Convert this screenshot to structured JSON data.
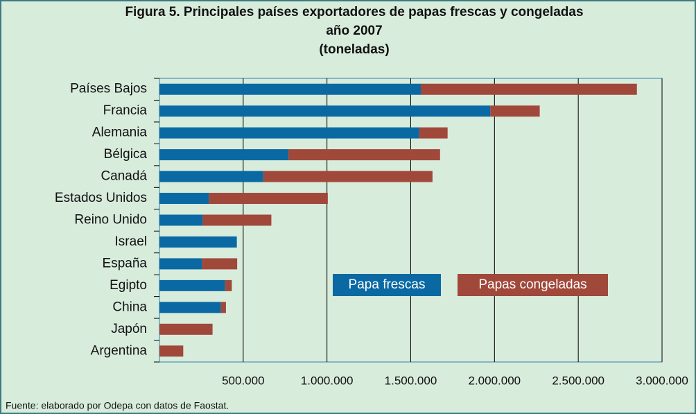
{
  "chart_data": {
    "type": "stacked-barh",
    "title_lines": [
      "Figura 5. Principales países exportadores de papas frescas y congeladas",
      "año 2007",
      "(toneladas)"
    ],
    "categories": [
      "Países Bajos",
      "Francia",
      "Alemania",
      "Bélgica",
      "Canadá",
      "Estados Unidos",
      "Reino Unido",
      "Israel",
      "España",
      "Egipto",
      "China",
      "Japón",
      "Argentina"
    ],
    "series": [
      {
        "name": "Papa frescas",
        "color": "#0a69a3",
        "values": [
          1560000,
          1975000,
          1550000,
          770000,
          620000,
          295000,
          258000,
          462000,
          254000,
          392000,
          367000,
          0,
          0
        ]
      },
      {
        "name": "Papas congeladas",
        "color": "#a0483a",
        "values": [
          1290000,
          295000,
          170000,
          905000,
          1010000,
          710000,
          410000,
          0,
          210000,
          40000,
          30000,
          317000,
          142000
        ]
      }
    ],
    "xlim": [
      0,
      3000000
    ],
    "xticks": [
      {
        "value": 500000,
        "label": "500.000"
      },
      {
        "value": 1000000,
        "label": "1.000.000"
      },
      {
        "value": 1500000,
        "label": "1.500.000"
      },
      {
        "value": 2000000,
        "label": "2.000.000"
      },
      {
        "value": 2500000,
        "label": "2.500.000"
      },
      {
        "value": 3000000,
        "label": "3.000.000"
      }
    ],
    "grid": true,
    "source": "Fuente: elaborado por Odepa con datos de Faostat."
  }
}
